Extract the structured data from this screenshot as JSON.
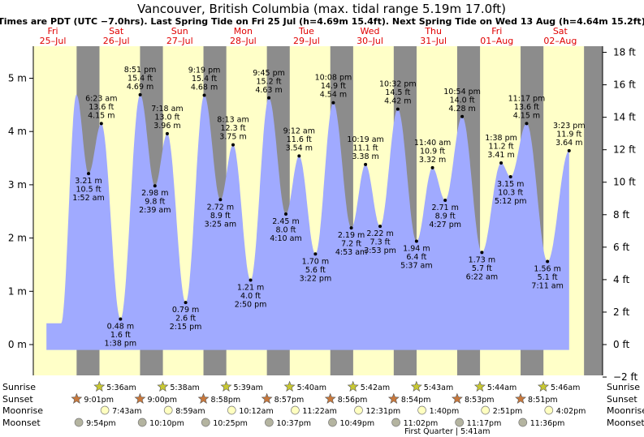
{
  "title": "Vancouver, British Columbia (max. tidal range 5.19m 17.0ft)",
  "subtitle": "Times are PDT (UTC −7.0hrs). Last Spring Tide on Fri 25 Jul (h=4.69m 15.4ft). Next Spring Tide on Wed 13 Aug (h=4.64m 15.2ft)",
  "colors": {
    "day": "#ffffc8",
    "night": "#8c8c8c",
    "tide": "#a0aaff",
    "day_label": "#e00000"
  },
  "chart_data": {
    "type": "area",
    "title": "Vancouver, British Columbia (max. tidal range 5.19m 17.0ft)",
    "x_range": [
      0.4,
      9.1
    ],
    "ylim_m": [
      -0.35,
      5.5
    ],
    "ylim_ft": [
      -2,
      18
    ],
    "left_axis_ticks": [
      "0 m",
      "1 m",
      "2 m",
      "3 m",
      "4 m",
      "5 m"
    ],
    "right_axis_ticks": [
      "−2 ft",
      "0 ft",
      "2 ft",
      "4 ft",
      "6 ft",
      "8 ft",
      "10 ft",
      "12 ft",
      "14 ft",
      "16 ft",
      "18 ft"
    ],
    "days": [
      {
        "name": "Fri",
        "date": "25–Jul"
      },
      {
        "name": "Sat",
        "date": "26–Jul"
      },
      {
        "name": "Sun",
        "date": "27–Jul"
      },
      {
        "name": "Mon",
        "date": "28–Jul"
      },
      {
        "name": "Tue",
        "date": "29–Jul"
      },
      {
        "name": "Wed",
        "date": "30–Jul"
      },
      {
        "name": "Thu",
        "date": "31–Jul"
      },
      {
        "name": "Fri",
        "date": "01–Aug"
      },
      {
        "name": "Sat",
        "date": "02–Aug"
      }
    ],
    "tides": [
      {
        "t": 1.063,
        "h": 3.21,
        "m": "3.21 m",
        "ft": "10.5 ft",
        "time": "1:52 am",
        "type": "low"
      },
      {
        "t": 1.265,
        "h": 4.15,
        "m": "4.15 m",
        "ft": "13.6 ft",
        "time": "6:23 am",
        "type": "high"
      },
      {
        "t": 1.567,
        "h": 0.48,
        "m": "0.48 m",
        "ft": "1.6 ft",
        "time": "1:38 pm",
        "type": "low"
      },
      {
        "t": 1.877,
        "h": 4.69,
        "m": "4.69 m",
        "ft": "15.4 ft",
        "time": "8:51 pm",
        "type": "high"
      },
      {
        "t": 2.11,
        "h": 2.98,
        "m": "2.98 m",
        "ft": "9.8 ft",
        "time": "2:39 am",
        "type": "low"
      },
      {
        "t": 2.304,
        "h": 3.96,
        "m": "3.96 m",
        "ft": "13.0 ft",
        "time": "7:18 am",
        "type": "high"
      },
      {
        "t": 2.594,
        "h": 0.79,
        "m": "0.79 m",
        "ft": "2.6 ft",
        "time": "2:15 pm",
        "type": "low"
      },
      {
        "t": 2.888,
        "h": 4.68,
        "m": "4.68 m",
        "ft": "15.4 ft",
        "time": "9:19 pm",
        "type": "high"
      },
      {
        "t": 3.142,
        "h": 2.72,
        "m": "2.72 m",
        "ft": "8.9 ft",
        "time": "3:25 am",
        "type": "low"
      },
      {
        "t": 3.342,
        "h": 3.75,
        "m": "3.75 m",
        "ft": "12.3 ft",
        "time": "8:13 am",
        "type": "high"
      },
      {
        "t": 3.618,
        "h": 1.21,
        "m": "1.21 m",
        "ft": "4.0 ft",
        "time": "2:50 pm",
        "type": "low"
      },
      {
        "t": 3.906,
        "h": 4.63,
        "m": "4.63 m",
        "ft": "15.2 ft",
        "time": "9:45 pm",
        "type": "high"
      },
      {
        "t": 4.174,
        "h": 2.45,
        "m": "2.45 m",
        "ft": "8.0 ft",
        "time": "4:10 am",
        "type": "low"
      },
      {
        "t": 4.383,
        "h": 3.54,
        "m": "3.54 m",
        "ft": "11.6 ft",
        "time": "9:12 am",
        "type": "high"
      },
      {
        "t": 4.64,
        "h": 1.7,
        "m": "1.70 m",
        "ft": "5.6 ft",
        "time": "3:22 pm",
        "type": "low"
      },
      {
        "t": 4.922,
        "h": 4.54,
        "m": "4.54 m",
        "ft": "14.9 ft",
        "time": "10:08 pm",
        "type": "high"
      },
      {
        "t": 5.206,
        "h": 2.19,
        "m": "2.19 m",
        "ft": "7.2 ft",
        "time": "4:53 am",
        "type": "low"
      },
      {
        "t": 5.43,
        "h": 3.38,
        "m": "3.38 m",
        "ft": "11.1 ft",
        "time": "10:19 am",
        "type": "high"
      },
      {
        "t": 5.66,
        "h": 2.22,
        "m": "2.22 m",
        "ft": "7.3 ft",
        "time": "3:53 pm",
        "type": "low"
      },
      {
        "t": 5.939,
        "h": 4.42,
        "m": "4.42 m",
        "ft": "14.5 ft",
        "time": "10:32 pm",
        "type": "high"
      },
      {
        "t": 6.234,
        "h": 1.94,
        "m": "1.94 m",
        "ft": "6.4 ft",
        "time": "5:37 am",
        "type": "low"
      },
      {
        "t": 6.486,
        "h": 3.32,
        "m": "3.32 m",
        "ft": "10.9 ft",
        "time": "11:40 am",
        "type": "high"
      },
      {
        "t": 6.686,
        "h": 2.71,
        "m": "2.71 m",
        "ft": "8.9 ft",
        "time": "4:27 pm",
        "type": "low"
      },
      {
        "t": 6.954,
        "h": 4.28,
        "m": "4.28 m",
        "ft": "14.0 ft",
        "time": "10:54 pm",
        "type": "high"
      },
      {
        "t": 7.265,
        "h": 1.73,
        "m": "1.73 m",
        "ft": "5.7 ft",
        "time": "6:22 am",
        "type": "low"
      },
      {
        "t": 7.568,
        "h": 3.41,
        "m": "3.41 m",
        "ft": "11.2 ft",
        "time": "1:38 pm",
        "type": "high"
      },
      {
        "t": 7.717,
        "h": 3.15,
        "m": "3.15 m",
        "ft": "10.3 ft",
        "time": "5:12 pm",
        "type": "low"
      },
      {
        "t": 7.97,
        "h": 4.15,
        "m": "4.15 m",
        "ft": "13.6 ft",
        "time": "11:17 pm",
        "type": "high"
      },
      {
        "t": 8.299,
        "h": 1.56,
        "m": "1.56 m",
        "ft": "5.1 ft",
        "time": "7:11 am",
        "type": "low"
      },
      {
        "t": 8.64,
        "h": 3.64,
        "m": "3.64 m",
        "ft": "11.9 ft",
        "time": "3:23 pm",
        "type": "high"
      }
    ]
  },
  "rows": {
    "sunrise": {
      "label": "Sunrise",
      "times": [
        "5:36am",
        "5:38am",
        "5:39am",
        "5:40am",
        "5:42am",
        "5:43am",
        "5:44am",
        "5:46am"
      ]
    },
    "sunset": {
      "label": "Sunset",
      "times": [
        "9:01pm",
        "9:00pm",
        "8:58pm",
        "8:57pm",
        "8:56pm",
        "8:54pm",
        "8:53pm",
        "8:51pm"
      ]
    },
    "moonrise": {
      "label": "Moonrise",
      "times": [
        "7:43am",
        "8:59am",
        "10:12am",
        "11:22am",
        "12:31pm",
        "1:40pm",
        "2:51pm",
        "4:02pm"
      ]
    },
    "moonset": {
      "label": "Moonset",
      "times": [
        "9:54pm",
        "10:10pm",
        "10:25pm",
        "10:37pm",
        "10:49pm",
        "11:02pm",
        "11:17pm",
        "11:36pm"
      ]
    }
  },
  "moon_phase": "First Quarter | 5:41am"
}
